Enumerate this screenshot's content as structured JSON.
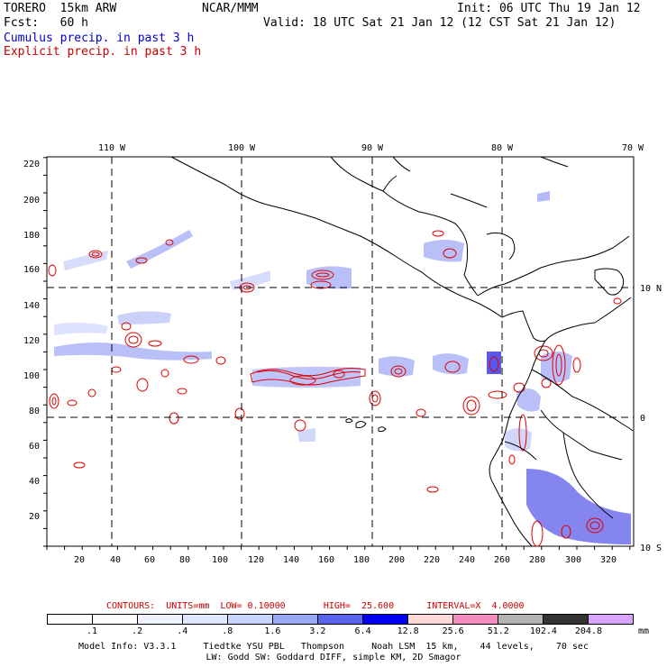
{
  "header": {
    "title_left": "TORERO  15km ARW",
    "org": "NCAR/MMM",
    "init": "Init: 06 UTC Thu 19 Jan 12",
    "fcst": "Fcst:   60 h",
    "valid": "Valid: 18 UTC Sat 21 Jan 12 (12 CST Sat 21 Jan 12)"
  },
  "legend": {
    "cumulus": "Cumulus precip. in past 3 h",
    "cumulus_color": "#0000cc",
    "explicit": "Explicit precip. in past 3 h",
    "explicit_color": "#cc0000"
  },
  "map": {
    "lon_labels": [
      "110 W",
      "100 W",
      "90 W",
      "80 W",
      "70 W"
    ],
    "lat_labels": [
      "10 N",
      "0",
      "10 S"
    ],
    "y_ticks": [
      "220",
      "200",
      "180",
      "160",
      "140",
      "120",
      "100",
      "80",
      "60",
      "40",
      "20"
    ],
    "x_ticks": [
      "20",
      "40",
      "60",
      "80",
      "100",
      "120",
      "140",
      "160",
      "180",
      "200",
      "220",
      "240",
      "260",
      "280",
      "300",
      "320"
    ],
    "land_color": "#000000",
    "grid_color": "#000000"
  },
  "contours": {
    "text": "CONTOURS:  UNITS=mm  LOW= 0.10000       HIGH=  25.600      INTERVAL=X  4.0000"
  },
  "scale": {
    "labels": [
      ".1",
      ".2",
      ".4",
      ".8",
      "1.6",
      "3.2",
      "6.4",
      "12.8",
      "25.6",
      "51.2",
      "102.4",
      "204.8"
    ],
    "unit": "mm",
    "colors": [
      "#ffffff",
      "#ffffff",
      "#eef3ff",
      "#dde8ff",
      "#c7d6ff",
      "#9aa8f6",
      "#5a63ee",
      "#0000ee",
      "#ffd8d8",
      "#f58cc0",
      "#b3b3b3",
      "#333333",
      "#d8a4ff"
    ]
  },
  "model_info": {
    "line1": "Model Info: V3.3.1     Tiedtke YSU PBL   Thompson     Noah LSM  15 km,    44 levels,    70 sec",
    "line2": "LW: Godd SW: Goddard DIFF, simple KM, 2D Smagor"
  }
}
